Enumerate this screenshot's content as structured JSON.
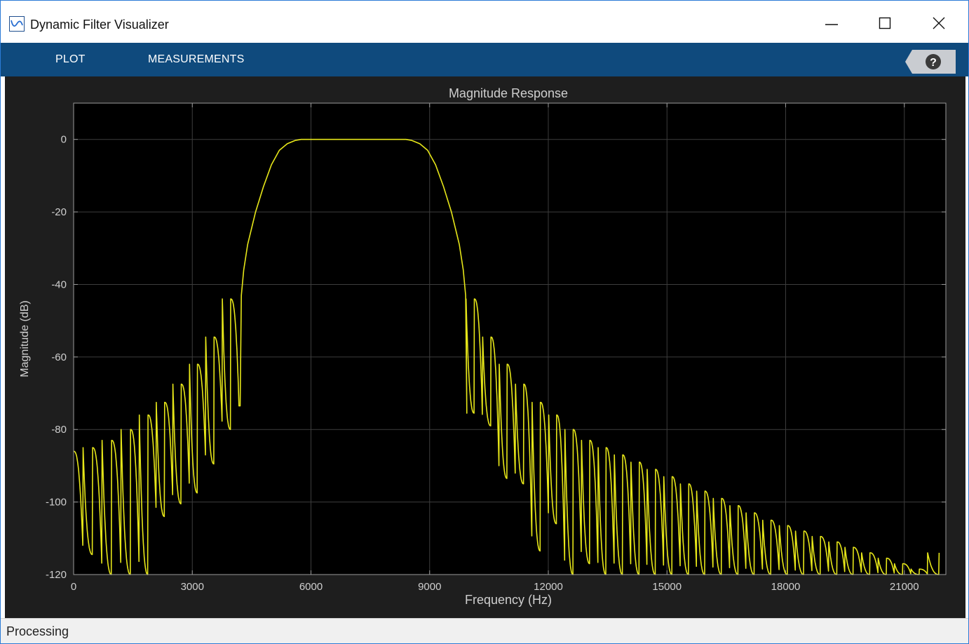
{
  "window": {
    "title": "Dynamic Filter Visualizer"
  },
  "toolstrip": {
    "tabs": [
      {
        "label": "PLOT"
      },
      {
        "label": "MEASUREMENTS"
      }
    ],
    "help_glyph": "?"
  },
  "statusbar": {
    "text": "Processing"
  },
  "icons": {
    "app": "filter-response-icon",
    "minimize": "minimize-icon",
    "maximize": "maximize-icon",
    "close": "close-icon",
    "help": "help-icon"
  },
  "chart_data": {
    "type": "line",
    "title": "Magnitude Response",
    "xlabel": "Frequency (Hz)",
    "ylabel": "Magnitude (dB)",
    "xlim": [
      0,
      22050
    ],
    "ylim": [
      -120,
      10
    ],
    "xticks": [
      0,
      3000,
      6000,
      9000,
      12000,
      15000,
      18000,
      21000
    ],
    "yticks": [
      0,
      -20,
      -40,
      -60,
      -80,
      -100,
      -120
    ],
    "xtick_labels": [
      "0",
      "3000",
      "6000",
      "9000",
      "12000",
      "15000",
      "18000",
      "21000"
    ],
    "ytick_labels": [
      "0",
      "-20",
      "-40",
      "-60",
      "-80",
      "-100",
      "-120"
    ],
    "grid": true,
    "line_color": "#e6e619",
    "background": "#000000",
    "passband_hz": [
      5750,
      8400
    ],
    "series": [
      {
        "lobe_peaks": [
          [
            0,
            -86
          ],
          [
            480,
            -85
          ],
          [
            960,
            -83
          ],
          [
            1440,
            -80
          ],
          [
            1880,
            -76
          ],
          [
            2300,
            -72.5
          ],
          [
            2720,
            -67.5
          ],
          [
            3130,
            -62
          ],
          [
            3550,
            -54.5
          ],
          [
            3970,
            -44
          ],
          [
            10130,
            -44
          ],
          [
            10550,
            -54.5
          ],
          [
            10960,
            -62
          ],
          [
            11380,
            -67.5
          ],
          [
            11800,
            -72.5
          ],
          [
            12210,
            -76
          ],
          [
            12630,
            -80
          ],
          [
            13050,
            -83
          ],
          [
            13460,
            -85
          ],
          [
            13880,
            -87
          ],
          [
            14300,
            -89
          ],
          [
            14710,
            -91
          ],
          [
            15130,
            -93
          ],
          [
            15550,
            -95
          ],
          [
            15960,
            -97
          ],
          [
            16380,
            -99
          ],
          [
            16800,
            -101
          ],
          [
            17210,
            -103
          ],
          [
            17630,
            -105
          ],
          [
            18050,
            -106.5
          ],
          [
            18460,
            -108
          ],
          [
            18880,
            -109.5
          ],
          [
            19300,
            -111
          ],
          [
            19710,
            -112.5
          ],
          [
            20130,
            -114
          ],
          [
            20550,
            -115.5
          ],
          [
            20960,
            -117
          ],
          [
            21380,
            -118.5
          ],
          [
            21880,
            -114
          ]
        ],
        "nulls": [
          [
            240,
            -114.5
          ],
          [
            720,
            -120
          ],
          [
            1200,
            -120
          ],
          [
            1660,
            -120
          ],
          [
            2090,
            -104
          ],
          [
            2510,
            -100.5
          ],
          [
            2930,
            -97.5
          ],
          [
            3340,
            -89.5
          ],
          [
            3760,
            -80
          ],
          [
            4180,
            -73.5
          ],
          [
            9920,
            -75.5
          ],
          [
            10340,
            -79
          ],
          [
            10760,
            -93.5
          ],
          [
            11170,
            -95
          ],
          [
            11590,
            -113.5
          ],
          [
            12010,
            -106
          ],
          [
            12420,
            -120
          ],
          [
            12840,
            -117
          ],
          [
            13260,
            -120
          ],
          [
            13670,
            -120
          ],
          [
            14090,
            -120
          ],
          [
            14500,
            -120
          ],
          [
            14920,
            -120
          ],
          [
            15340,
            -120
          ],
          [
            15750,
            -120
          ],
          [
            16170,
            -120
          ],
          [
            16590,
            -120
          ],
          [
            17000,
            -120
          ],
          [
            17420,
            -120
          ],
          [
            17840,
            -120
          ],
          [
            18250,
            -120
          ],
          [
            18670,
            -120
          ],
          [
            19090,
            -120
          ],
          [
            19500,
            -120
          ],
          [
            19920,
            -120
          ],
          [
            20340,
            -120
          ],
          [
            20750,
            -120
          ],
          [
            21170,
            -120
          ],
          [
            21590,
            -120
          ]
        ],
        "mainlobe": [
          [
            4210,
            -73.5
          ],
          [
            4240,
            -43
          ],
          [
            4300,
            -36
          ],
          [
            4400,
            -29
          ],
          [
            4600,
            -20
          ],
          [
            4800,
            -13
          ],
          [
            5000,
            -7
          ],
          [
            5200,
            -3
          ],
          [
            5400,
            -1.2
          ],
          [
            5600,
            -0.3
          ],
          [
            5750,
            0
          ],
          [
            8400,
            0
          ],
          [
            8550,
            -0.3
          ],
          [
            8750,
            -1.2
          ],
          [
            8950,
            -3
          ],
          [
            9150,
            -7
          ],
          [
            9350,
            -13
          ],
          [
            9550,
            -20
          ],
          [
            9750,
            -29
          ],
          [
            9850,
            -36
          ],
          [
            9910,
            -43
          ],
          [
            9940,
            -75.5
          ]
        ]
      }
    ]
  }
}
